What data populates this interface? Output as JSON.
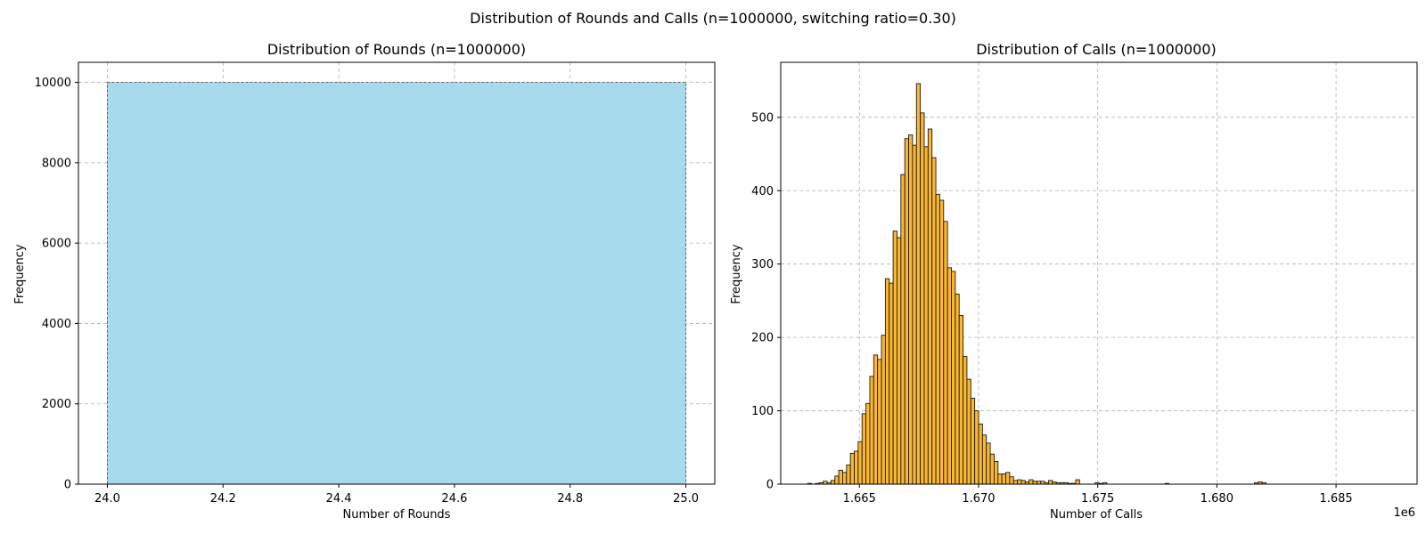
{
  "suptitle": "Distribution of Rounds and Calls (n=1000000, switching ratio=0.30)",
  "chart_data": [
    {
      "type": "bar",
      "title": "Distribution of Rounds (n=1000000)",
      "xlabel": "Number of Rounds",
      "ylabel": "Frequency",
      "xlim": [
        23.95,
        25.05
      ],
      "ylim": [
        0,
        10500
      ],
      "xticks": [
        24.0,
        24.2,
        24.4,
        24.6,
        24.8,
        25.0
      ],
      "xtick_labels": [
        "24.0",
        "24.2",
        "24.4",
        "24.6",
        "24.8",
        "25.0"
      ],
      "yticks": [
        0,
        2000,
        4000,
        6000,
        8000,
        10000
      ],
      "ytick_labels": [
        "0",
        "2000",
        "4000",
        "6000",
        "8000",
        "10000"
      ],
      "bins": [
        {
          "x0": 24.0,
          "x1": 25.0,
          "value": 10000
        }
      ],
      "grid": true,
      "color": "#a7daed",
      "edgecolor": "#555555"
    },
    {
      "type": "bar",
      "title": "Distribution of Calls (n=1000000)",
      "xlabel": "Number of Calls",
      "ylabel": "Frequency",
      "offset_text": "1e6",
      "xlim": [
        1.6617,
        1.6884
      ],
      "ylim": [
        0,
        575
      ],
      "xticks": [
        1.665,
        1.67,
        1.675,
        1.68,
        1.685
      ],
      "xtick_labels": [
        "1.665",
        "1.670",
        "1.675",
        "1.680",
        "1.685"
      ],
      "yticks": [
        0,
        100,
        200,
        300,
        400,
        500
      ],
      "ytick_labels": [
        "0",
        "100",
        "200",
        "300",
        "400",
        "500"
      ],
      "bin_start": 1.66283,
      "bin_width": 0.000163,
      "values": [
        1,
        0,
        1,
        2,
        4,
        2,
        5,
        11,
        19,
        16,
        26,
        42,
        45,
        58,
        96,
        110,
        147,
        176,
        170,
        203,
        280,
        274,
        345,
        336,
        422,
        471,
        476,
        462,
        546,
        506,
        460,
        484,
        445,
        395,
        387,
        358,
        295,
        290,
        259,
        230,
        174,
        143,
        117,
        100,
        82,
        67,
        56,
        41,
        31,
        14,
        14,
        16,
        10,
        5,
        6,
        5,
        3,
        6,
        4,
        4,
        4,
        2,
        5,
        3,
        2,
        2,
        2,
        1,
        1,
        6,
        0,
        0,
        0,
        0,
        2,
        1,
        2,
        0,
        0,
        0,
        0,
        0,
        0,
        0,
        0,
        0,
        0,
        0,
        0,
        0,
        0,
        0,
        1,
        0,
        0,
        0,
        0,
        0,
        0,
        0,
        0,
        0,
        0,
        0,
        0,
        0,
        0,
        0,
        0,
        0,
        0,
        0,
        0,
        0,
        0,
        2,
        3,
        2
      ],
      "grid": true,
      "color": "#fbb731",
      "edgecolor": "#1a1a1a"
    }
  ]
}
